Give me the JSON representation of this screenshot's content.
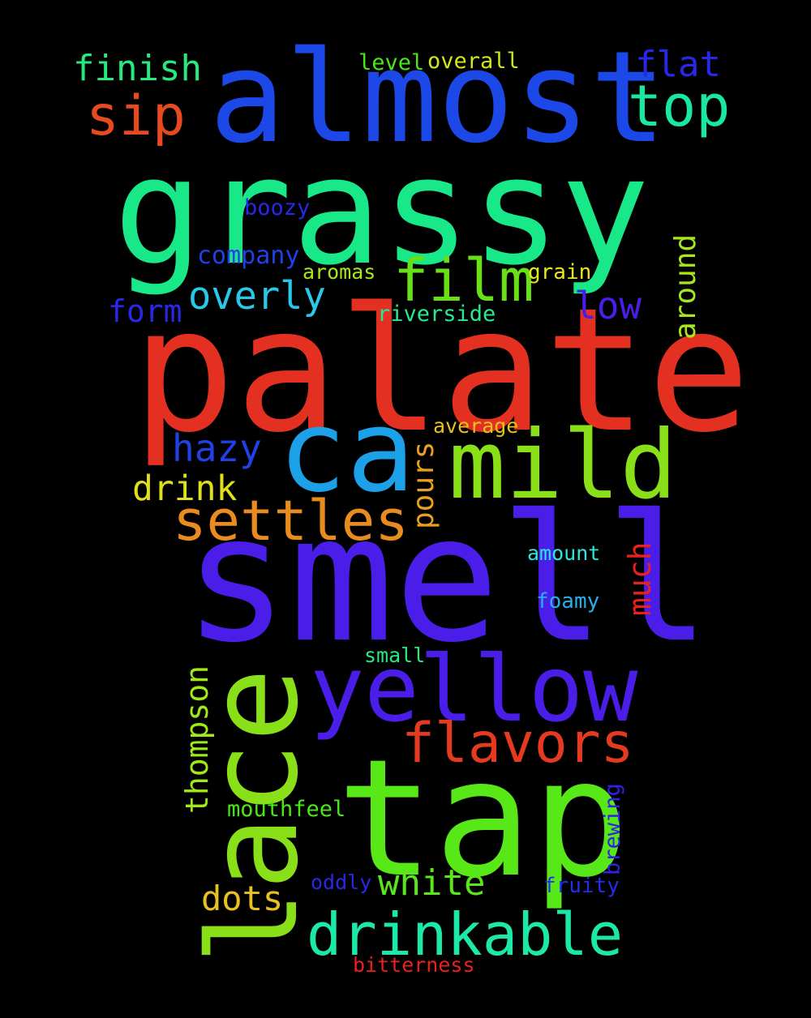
{
  "words": [
    {
      "text": "palate",
      "color": "#e33020"
    },
    {
      "text": "grassy",
      "color": "#18e888"
    },
    {
      "text": "smell",
      "color": "#4a1ee8"
    },
    {
      "text": "tap",
      "color": "#58e818"
    },
    {
      "text": "lace",
      "color": "#8ae018"
    },
    {
      "text": "almost",
      "color": "#1c48e8"
    },
    {
      "text": "ca",
      "color": "#1ca0e8"
    },
    {
      "text": "yellow",
      "color": "#4a1ee8"
    },
    {
      "text": "mild",
      "color": "#8ae018"
    },
    {
      "text": "drinkable",
      "color": "#1ce8a8"
    },
    {
      "text": "settles",
      "color": "#e88c20"
    },
    {
      "text": "flavors",
      "color": "#e33a20"
    },
    {
      "text": "film",
      "color": "#68e018"
    },
    {
      "text": "top",
      "color": "#18e8a0"
    },
    {
      "text": "sip",
      "color": "#e84a20"
    },
    {
      "text": "hazy",
      "color": "#2040e8"
    },
    {
      "text": "overly",
      "color": "#28c8e8"
    },
    {
      "text": "white",
      "color": "#58e818"
    },
    {
      "text": "finish",
      "color": "#28e880"
    },
    {
      "text": "flat",
      "color": "#2828e8"
    },
    {
      "text": "drink",
      "color": "#e0e018"
    },
    {
      "text": "dots",
      "color": "#e8c020"
    },
    {
      "text": "low",
      "color": "#4a1ee8"
    },
    {
      "text": "thompson",
      "color": "#a0e818"
    },
    {
      "text": "much",
      "color": "#e82020"
    },
    {
      "text": "pours",
      "color": "#e8a020"
    },
    {
      "text": "around",
      "color": "#a8e818"
    },
    {
      "text": "form",
      "color": "#2828e8"
    },
    {
      "text": "brewing",
      "color": "#3020e8"
    },
    {
      "text": "mouthfeel",
      "color": "#48e818"
    },
    {
      "text": "company",
      "color": "#2040e8"
    },
    {
      "text": "riverside",
      "color": "#28e890"
    },
    {
      "text": "overall",
      "color": "#d0e818"
    },
    {
      "text": "level",
      "color": "#48e818"
    },
    {
      "text": "boozy",
      "color": "#2828e8"
    },
    {
      "text": "aromas",
      "color": "#a8e818"
    },
    {
      "text": "grain",
      "color": "#e8e818"
    },
    {
      "text": "average",
      "color": "#e8c020"
    },
    {
      "text": "amount",
      "color": "#28e8e0"
    },
    {
      "text": "foamy",
      "color": "#28b0e8"
    },
    {
      "text": "small",
      "color": "#28e880"
    },
    {
      "text": "oddly",
      "color": "#2828e8"
    },
    {
      "text": "fruity",
      "color": "#2030e8"
    },
    {
      "text": "bitterness",
      "color": "#e82020"
    }
  ]
}
